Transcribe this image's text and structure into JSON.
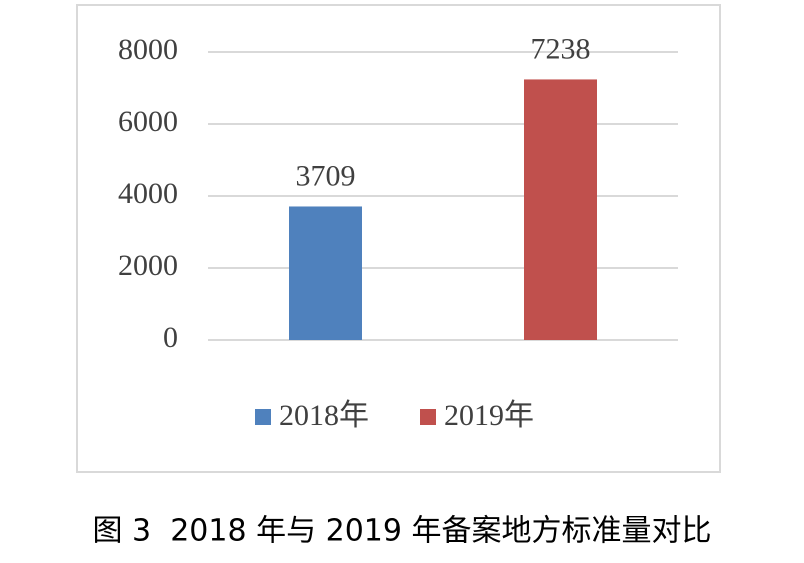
{
  "chart_data": {
    "type": "bar",
    "caption": "图 3  2018 年与 2019 年备案地方标准量对比",
    "categories": [
      null,
      null
    ],
    "series": [
      {
        "name": "2018年",
        "color": "#4f81bd",
        "values": [
          3709,
          null
        ]
      },
      {
        "name": "2019年",
        "color": "#c0504d",
        "values": [
          null,
          7238
        ]
      }
    ],
    "ylim": [
      0,
      8000
    ],
    "yticks": [
      0,
      2000,
      4000,
      6000,
      8000
    ],
    "grid": true,
    "legend": "bottom"
  }
}
